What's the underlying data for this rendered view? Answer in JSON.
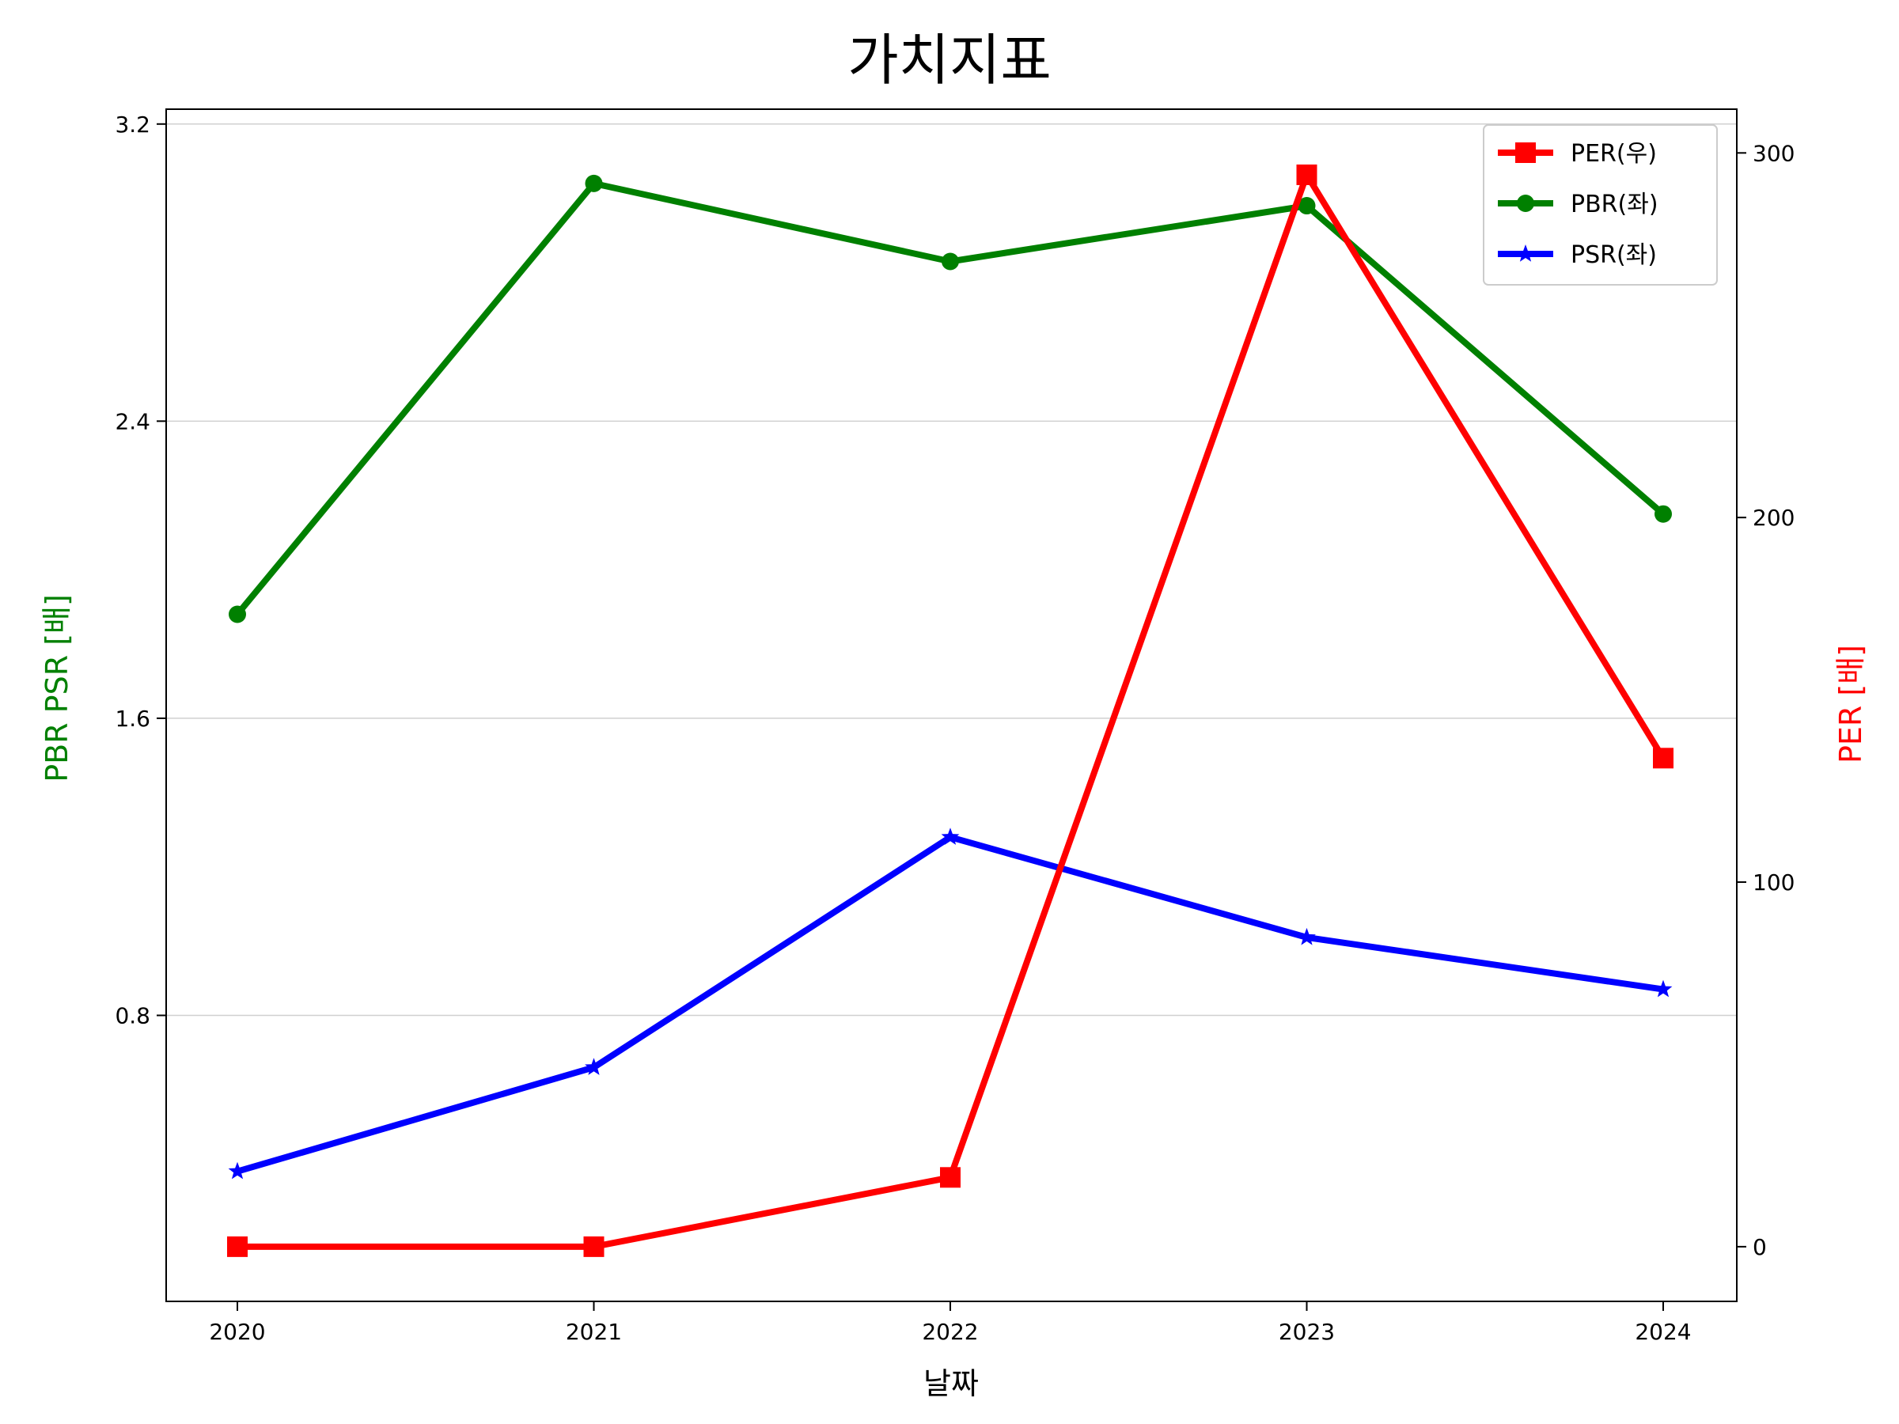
{
  "chart_data": {
    "type": "line",
    "title": "가치지표",
    "xlabel": "날짜",
    "ylabel_left": "PBR PSR [배]",
    "ylabel_right": "PER [배]",
    "categories": [
      "2020",
      "2021",
      "2022",
      "2023",
      "2024"
    ],
    "left_axis": {
      "ylim": [
        0.03,
        3.24
      ],
      "ticks": [
        "0.8",
        "1.6",
        "2.4",
        "3.2"
      ],
      "color": "#008000"
    },
    "right_axis": {
      "ylim": [
        -15,
        312
      ],
      "ticks": [
        "0",
        "100",
        "200",
        "300"
      ],
      "color": "#ff0000"
    },
    "grid": "horizontal",
    "legend_position": "top-right",
    "series": [
      {
        "name": "PER(우)",
        "axis": "right",
        "color": "#ff0000",
        "marker": "square",
        "values": [
          0,
          0,
          19,
          294,
          134
        ]
      },
      {
        "name": "PBR(좌)",
        "axis": "left",
        "color": "#008000",
        "marker": "circle",
        "values": [
          1.88,
          3.04,
          2.83,
          2.98,
          2.15
        ]
      },
      {
        "name": "PSR(좌)",
        "axis": "left",
        "color": "#0000ff",
        "marker": "star",
        "values": [
          0.38,
          0.66,
          1.28,
          1.01,
          0.87
        ]
      }
    ]
  }
}
